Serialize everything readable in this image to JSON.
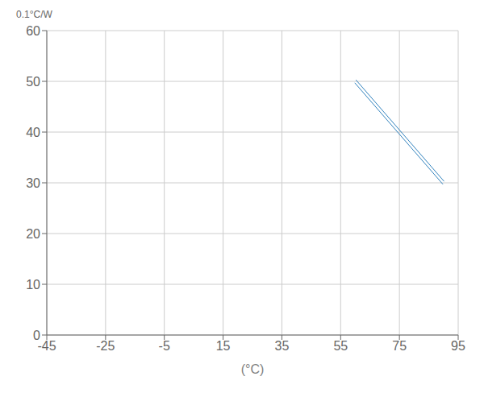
{
  "chart_data": {
    "type": "line",
    "xlabel": "(°C)",
    "ylabel": "0.1°C/W",
    "series": [
      {
        "x": [
          60.19414506867883,
          90.19414506867884
        ],
        "values": [
          50.29121760301825,
          30.291217603018247
        ]
      },
      {
        "x": [
          59.80585493132117,
          89.80585493132116
        ],
        "values": [
          49.70878239698175,
          29.70878239698175
        ]
      }
    ],
    "xlim": [
      -45,
      95
    ],
    "xticks": [
      -45,
      -25,
      -5,
      15,
      35,
      55,
      75,
      95
    ],
    "ylim": [
      0,
      60
    ],
    "yticks": [
      0,
      10,
      20,
      30,
      40,
      50,
      60
    ],
    "grid": true
  }
}
